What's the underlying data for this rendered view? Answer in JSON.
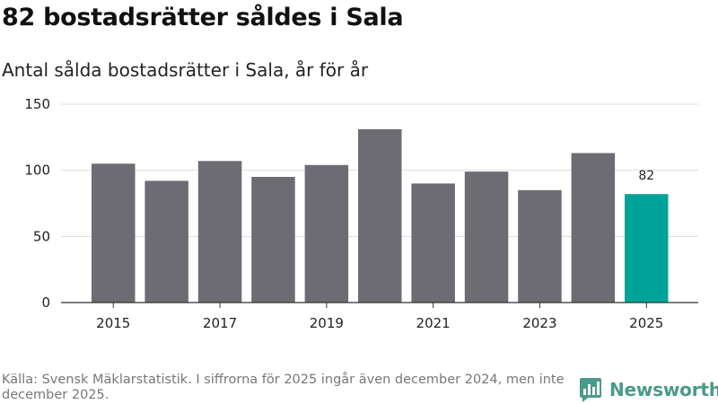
{
  "header": {
    "title": "82 bostadsrätter såldes i Sala",
    "subtitle": "Antal sålda bostadsrätter i Sala, år för år"
  },
  "footer": {
    "source": "Källa: Svensk Mäklarstatistik. I siffrorna för 2025 ingår även december 2024, men inte december 2025.",
    "brand": "Newsworthy",
    "brand_icon": "bar-chart-bubble-icon"
  },
  "colors": {
    "bar": "#6d6c72",
    "highlight": "#00a398",
    "grid": "#dddddd",
    "axis": "#333333",
    "brand": "#4a9a8a"
  },
  "chart_data": {
    "type": "bar",
    "title": "82 bostadsrätter såldes i Sala",
    "subtitle": "Antal sålda bostadsrätter i Sala, år för år",
    "categories": [
      "2015",
      "2016",
      "2017",
      "2018",
      "2019",
      "2020",
      "2021",
      "2022",
      "2023",
      "2024",
      "2025"
    ],
    "values": [
      105,
      92,
      107,
      95,
      104,
      131,
      90,
      99,
      85,
      113,
      82
    ],
    "highlight_index": 10,
    "data_labels": [
      {
        "index": 10,
        "text": "82"
      }
    ],
    "x_tick_labels": [
      "2015",
      "2017",
      "2019",
      "2021",
      "2023",
      "2025"
    ],
    "y_ticks": [
      0,
      50,
      100,
      150
    ],
    "ylim": [
      0,
      150
    ],
    "xlabel": "",
    "ylabel": "",
    "grid": true
  }
}
